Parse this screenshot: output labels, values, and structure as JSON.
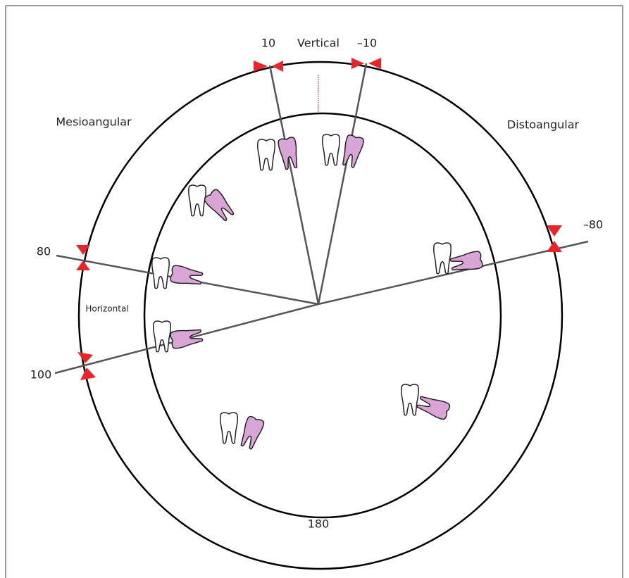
{
  "labels": {
    "angle_10": "10",
    "vertical": "Vertical",
    "angle_minus_10": "–10",
    "mesioangular": "Mesioangular",
    "distoangular": "Distoangular",
    "angle_80": "80",
    "horizontal": "Horizontal",
    "angle_100": "100",
    "angle_minus_80": "–80",
    "angle_180": "180"
  }
}
